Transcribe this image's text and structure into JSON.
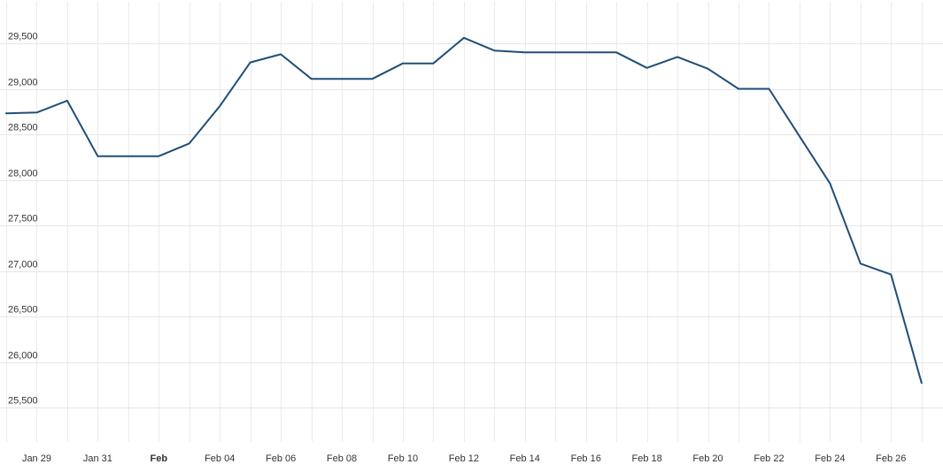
{
  "chart_data": {
    "type": "line",
    "title": "",
    "xlabel": "",
    "ylabel": "",
    "ylim": [
      25500,
      29500
    ],
    "yticks": [
      25500,
      26000,
      26500,
      27000,
      27500,
      28000,
      28500,
      29000,
      29500
    ],
    "ytick_labels": [
      "25,500",
      "26,000",
      "26,500",
      "27,000",
      "27,500",
      "28,000",
      "28,500",
      "29,000",
      "29,500"
    ],
    "xticks": [
      {
        "label": "Jan 29",
        "date": "2020-01-29",
        "bold": false
      },
      {
        "label": "Jan 31",
        "date": "2020-01-31",
        "bold": false
      },
      {
        "label": "Feb",
        "date": "2020-02-02",
        "bold": true
      },
      {
        "label": "Feb 04",
        "date": "2020-02-04",
        "bold": false
      },
      {
        "label": "Feb 06",
        "date": "2020-02-06",
        "bold": false
      },
      {
        "label": "Feb 08",
        "date": "2020-02-08",
        "bold": false
      },
      {
        "label": "Feb 10",
        "date": "2020-02-10",
        "bold": false
      },
      {
        "label": "Feb 12",
        "date": "2020-02-12",
        "bold": false
      },
      {
        "label": "Feb 14",
        "date": "2020-02-14",
        "bold": false
      },
      {
        "label": "Feb 16",
        "date": "2020-02-16",
        "bold": false
      },
      {
        "label": "Feb 18",
        "date": "2020-02-18",
        "bold": false
      },
      {
        "label": "Feb 20",
        "date": "2020-02-20",
        "bold": false
      },
      {
        "label": "Feb 22",
        "date": "2020-02-22",
        "bold": false
      },
      {
        "label": "Feb 24",
        "date": "2020-02-24",
        "bold": false
      },
      {
        "label": "Feb 26",
        "date": "2020-02-26",
        "bold": false
      }
    ],
    "grid": true,
    "legend": "none",
    "series": [
      {
        "color": "#1f4e79",
        "points": [
          {
            "x": "2020-01-28",
            "y": 28730
          },
          {
            "x": "2020-01-29",
            "y": 28740
          },
          {
            "x": "2020-01-30",
            "y": 28870
          },
          {
            "x": "2020-01-31",
            "y": 28260
          },
          {
            "x": "2020-02-01",
            "y": 28260
          },
          {
            "x": "2020-02-02",
            "y": 28260
          },
          {
            "x": "2020-02-03",
            "y": 28400
          },
          {
            "x": "2020-02-04",
            "y": 28810
          },
          {
            "x": "2020-02-05",
            "y": 29290
          },
          {
            "x": "2020-02-06",
            "y": 29380
          },
          {
            "x": "2020-02-07",
            "y": 29110
          },
          {
            "x": "2020-02-08",
            "y": 29110
          },
          {
            "x": "2020-02-09",
            "y": 29110
          },
          {
            "x": "2020-02-10",
            "y": 29280
          },
          {
            "x": "2020-02-11",
            "y": 29280
          },
          {
            "x": "2020-02-12",
            "y": 29560
          },
          {
            "x": "2020-02-13",
            "y": 29420
          },
          {
            "x": "2020-02-14",
            "y": 29400
          },
          {
            "x": "2020-02-15",
            "y": 29400
          },
          {
            "x": "2020-02-16",
            "y": 29400
          },
          {
            "x": "2020-02-17",
            "y": 29400
          },
          {
            "x": "2020-02-18",
            "y": 29230
          },
          {
            "x": "2020-02-19",
            "y": 29350
          },
          {
            "x": "2020-02-20",
            "y": 29220
          },
          {
            "x": "2020-02-21",
            "y": 29000
          },
          {
            "x": "2020-02-22",
            "y": 29000
          },
          {
            "x": "2020-02-23",
            "y": 28480
          },
          {
            "x": "2020-02-24",
            "y": 27960
          },
          {
            "x": "2020-02-25",
            "y": 27080
          },
          {
            "x": "2020-02-26",
            "y": 26960
          },
          {
            "x": "2020-02-27",
            "y": 25770
          }
        ]
      }
    ]
  }
}
